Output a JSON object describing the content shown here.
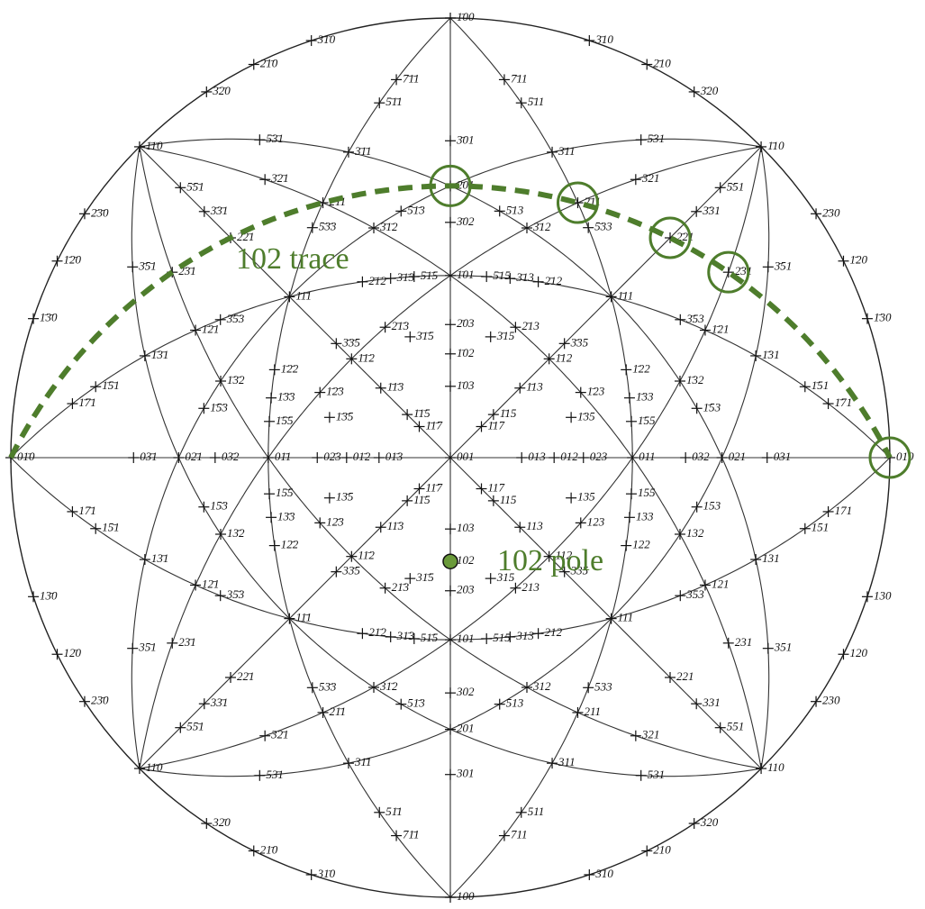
{
  "poles": [
    "100",
    "1̄00",
    "010",
    "01̄0",
    "110",
    "1̄10",
    "11̄0",
    "1̄1̄0",
    "210",
    "2̄10",
    "21̄0",
    "2̄1̄0",
    "120",
    "1̄20",
    "12̄0",
    "1̄2̄0",
    "310",
    "3̄10",
    "31̄0",
    "3̄1̄0",
    "130",
    "1̄30",
    "13̄0",
    "1̄3̄0",
    "320",
    "3̄20",
    "32̄0",
    "3̄2̄0",
    "230",
    "2̄30",
    "23̄0",
    "2̄3̄0",
    "001",
    "011",
    "01̄1",
    "101",
    "1̄01",
    "012",
    "01̄2",
    "013",
    "01̄3",
    "021",
    "02̄1",
    "023",
    "02̄3",
    "031",
    "03̄1",
    "032",
    "03̄2",
    "102",
    "1̄02",
    "103",
    "1̄03",
    "201",
    "2̄01",
    "203",
    "2̄03",
    "301",
    "3̄01",
    "302",
    "3̄02",
    "111",
    "1̄11",
    "11̄1",
    "1̄1̄1",
    "112",
    "1̄12",
    "11̄2",
    "1̄1̄2",
    "121",
    "1̄21",
    "12̄1",
    "1̄2̄1",
    "211",
    "2̄11",
    "21̄1",
    "2̄1̄1",
    "113",
    "1̄13",
    "11̄3",
    "1̄1̄3",
    "131",
    "1̄31",
    "13̄1",
    "1̄3̄1",
    "311",
    "3̄11",
    "31̄1",
    "3̄1̄1",
    "122",
    "1̄22",
    "12̄2",
    "1̄2̄2",
    "212",
    "2̄12",
    "21̄2",
    "2̄1̄2",
    "221",
    "2̄21",
    "22̄1",
    "2̄2̄1",
    "123",
    "1̄23",
    "12̄3",
    "1̄2̄3",
    "132",
    "1̄32",
    "13̄2",
    "1̄3̄2",
    "213",
    "2̄13",
    "21̄3",
    "2̄1̄3",
    "231",
    "2̄31",
    "23̄1",
    "2̄3̄1",
    "312",
    "3̄12",
    "31̄2",
    "3̄1̄2",
    "321",
    "3̄21",
    "32̄1",
    "3̄2̄1",
    "133",
    "1̄33",
    "13̄3",
    "1̄3̄3",
    "313",
    "3̄13",
    "31̄3",
    "3̄1̄3",
    "331",
    "3̄31",
    "33̄1",
    "3̄3̄1",
    "115",
    "1̄15",
    "11̄5",
    "1̄1̄5",
    "151",
    "1̄51",
    "15̄1",
    "1̄5̄1",
    "511",
    "5̄11",
    "51̄1",
    "5̄1̄1",
    "117",
    "1̄17",
    "11̄7",
    "1̄1̄7",
    "171",
    "1̄71",
    "17̄1",
    "1̄7̄1",
    "711",
    "7̄11",
    "71̄1",
    "7̄1̄1",
    "135",
    "1̄35",
    "13̄5",
    "1̄3̄5",
    "153",
    "1̄53",
    "15̄3",
    "1̄5̄3",
    "315",
    "3̄15",
    "31̄5",
    "3̄1̄5",
    "351",
    "3̄51",
    "35̄1",
    "3̄5̄1",
    "513",
    "5̄13",
    "51̄3",
    "5̄1̄3",
    "531",
    "5̄31",
    "53̄1",
    "5̄3̄1",
    "155",
    "1̄55",
    "15̄5",
    "1̄5̄5",
    "515",
    "5̄15",
    "51̄5",
    "5̄1̄5",
    "551",
    "5̄51",
    "55̄1",
    "5̄5̄1",
    "335",
    "3̄35",
    "33̄5",
    "3̄3̄5",
    "353",
    "3̄53",
    "35̄3",
    "3̄5̄3",
    "533",
    "5̄33",
    "53̄3",
    "5̄3̄3"
  ],
  "annotations": {
    "trace": "102 trace",
    "pole": "102 pole"
  }
}
